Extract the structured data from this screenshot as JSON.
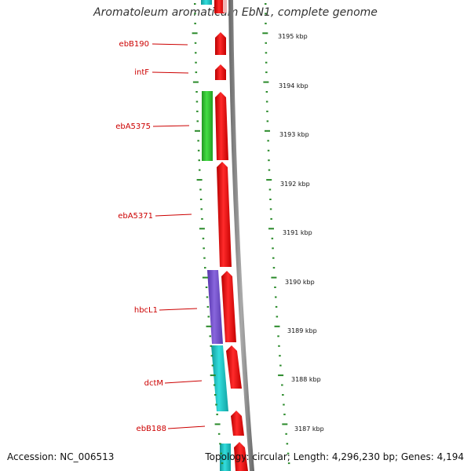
{
  "title": "Aromatoleum aromaticum EbN1, complete genome",
  "accession": "Accession: NC_006513",
  "summary": "Topology: circular; Length: 4,296,230 bp; Genes: 4,194",
  "colors": {
    "forward_cds": "#ee1111",
    "green_gene": "#33cc33",
    "purple_gene": "#7755cc",
    "cyan_gene": "#22cccc",
    "backbone": "#8a8a8a",
    "tick": "#2a8a2a",
    "label": "#cc0000"
  },
  "gene_labels": [
    "ebB190",
    "intF",
    "ebA5375",
    "ebA5371",
    "hbcL1",
    "dctM",
    "ebB188"
  ],
  "kbp_labels": [
    "3195 kbp",
    "3194 kbp",
    "3193 kbp",
    "3192 kbp",
    "3191 kbp",
    "3190 kbp",
    "3189 kbp",
    "3188 kbp",
    "3187 kbp"
  ]
}
